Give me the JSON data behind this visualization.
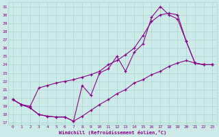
{
  "xlabel": "Windchill (Refroidissement éolien,°C)",
  "bg_color": "#cceae8",
  "line_color": "#880088",
  "grid_color": "#aad4d0",
  "xlim": [
    -0.5,
    23.5
  ],
  "ylim": [
    16.8,
    31.5
  ],
  "xticks": [
    0,
    1,
    2,
    3,
    4,
    5,
    6,
    7,
    8,
    9,
    10,
    11,
    12,
    13,
    14,
    15,
    16,
    17,
    18,
    19,
    20,
    21,
    22,
    23
  ],
  "yticks": [
    17,
    18,
    19,
    20,
    21,
    22,
    23,
    24,
    25,
    26,
    27,
    28,
    29,
    30,
    31
  ],
  "series1": [
    [
      0,
      19.8
    ],
    [
      1,
      19.2
    ],
    [
      2,
      18.8
    ],
    [
      3,
      18.0
    ],
    [
      4,
      17.8
    ],
    [
      5,
      17.7
    ],
    [
      6,
      17.7
    ],
    [
      7,
      17.2
    ],
    [
      8,
      21.5
    ],
    [
      9,
      20.3
    ],
    [
      10,
      23.0
    ],
    [
      11,
      23.5
    ],
    [
      12,
      25.0
    ],
    [
      13,
      23.2
    ],
    [
      14,
      25.5
    ],
    [
      15,
      26.5
    ],
    [
      16,
      29.7
    ],
    [
      17,
      31.0
    ],
    [
      18,
      30.0
    ],
    [
      19,
      29.5
    ],
    [
      20,
      26.8
    ],
    [
      21,
      24.2
    ],
    [
      22,
      24.0
    ],
    [
      23,
      24.0
    ]
  ],
  "series2": [
    [
      0,
      19.8
    ],
    [
      1,
      19.2
    ],
    [
      2,
      19.0
    ],
    [
      3,
      21.2
    ],
    [
      4,
      21.5
    ],
    [
      5,
      21.8
    ],
    [
      6,
      22.0
    ],
    [
      7,
      22.2
    ],
    [
      8,
      22.5
    ],
    [
      9,
      22.8
    ],
    [
      10,
      23.2
    ],
    [
      11,
      24.0
    ],
    [
      12,
      24.5
    ],
    [
      13,
      25.2
    ],
    [
      14,
      26.0
    ],
    [
      15,
      27.5
    ],
    [
      16,
      29.2
    ],
    [
      17,
      30.0
    ],
    [
      18,
      30.2
    ],
    [
      19,
      30.0
    ],
    [
      20,
      26.8
    ],
    [
      21,
      24.2
    ],
    [
      22,
      24.0
    ],
    [
      23,
      24.0
    ]
  ],
  "series3": [
    [
      0,
      19.8
    ],
    [
      1,
      19.2
    ],
    [
      2,
      18.8
    ],
    [
      3,
      18.0
    ],
    [
      4,
      17.8
    ],
    [
      5,
      17.7
    ],
    [
      6,
      17.7
    ],
    [
      7,
      17.2
    ],
    [
      8,
      17.8
    ],
    [
      9,
      18.5
    ],
    [
      10,
      19.2
    ],
    [
      11,
      19.8
    ],
    [
      12,
      20.5
    ],
    [
      13,
      21.0
    ],
    [
      14,
      21.8
    ],
    [
      15,
      22.2
    ],
    [
      16,
      22.8
    ],
    [
      17,
      23.2
    ],
    [
      18,
      23.8
    ],
    [
      19,
      24.2
    ],
    [
      20,
      24.5
    ],
    [
      21,
      24.2
    ],
    [
      22,
      24.0
    ],
    [
      23,
      24.0
    ]
  ]
}
